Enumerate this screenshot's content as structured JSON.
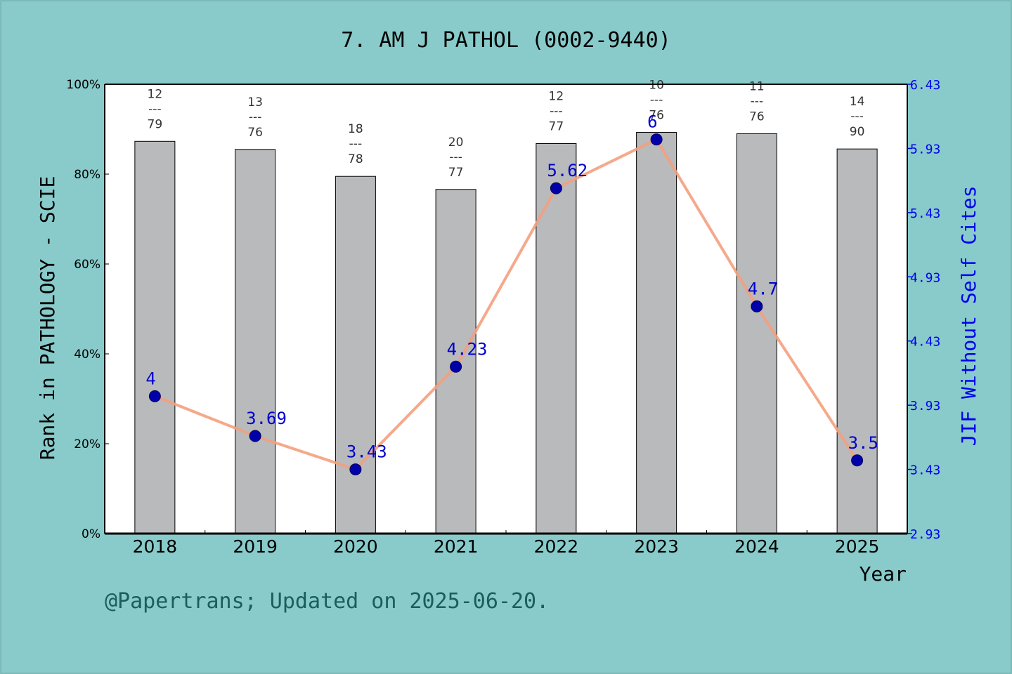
{
  "chart_data": {
    "type": "bar",
    "title": "7. AM J PATHOL (0002-9440)",
    "xlabel": "Year",
    "ylabel_left": "Rank in PATHOLOGY - SCIE",
    "ylabel_right": "JIF Without Self Cites",
    "categories": [
      "2018",
      "2019",
      "2020",
      "2021",
      "2022",
      "2023",
      "2024",
      "2025"
    ],
    "left_axis": {
      "ylim": [
        0,
        100
      ],
      "ticks": [
        0,
        20,
        40,
        60,
        80,
        100
      ],
      "tick_labels": [
        "0%",
        "20%",
        "40%",
        "60%",
        "80%",
        "100%"
      ]
    },
    "right_axis": {
      "ylim": [
        2.93,
        6.43
      ],
      "ticks": [
        2.93,
        3.43,
        3.93,
        4.43,
        4.93,
        5.43,
        5.93,
        6.43
      ],
      "tick_labels": [
        "2.93",
        "3.43",
        "3.93",
        "4.43",
        "4.93",
        "5.43",
        "5.93",
        "6.43"
      ]
    },
    "series": [
      {
        "type": "bar",
        "axis": "left",
        "color": "#b8babc",
        "values": [
          87.3,
          85.5,
          79.5,
          76.6,
          86.8,
          89.3,
          89.0,
          85.6
        ],
        "rank": [
          "12",
          "13",
          "18",
          "20",
          "12",
          "10",
          "11",
          "14"
        ],
        "total": [
          "79",
          "76",
          "78",
          "77",
          "77",
          "76",
          "76",
          "90"
        ],
        "separator": "---"
      },
      {
        "type": "line",
        "axis": "right",
        "color": "#f4a07e",
        "marker_color": "#0000aa",
        "values": [
          4,
          3.69,
          3.43,
          4.23,
          5.62,
          6,
          4.7,
          3.5
        ],
        "labels": [
          "4",
          "3.69",
          "3.43",
          "4.23",
          "5.62",
          "6",
          "4.7",
          "3.5"
        ]
      }
    ],
    "legend": "none",
    "grid": false
  },
  "footer": "@Papertrans; Updated on 2025-06-20."
}
